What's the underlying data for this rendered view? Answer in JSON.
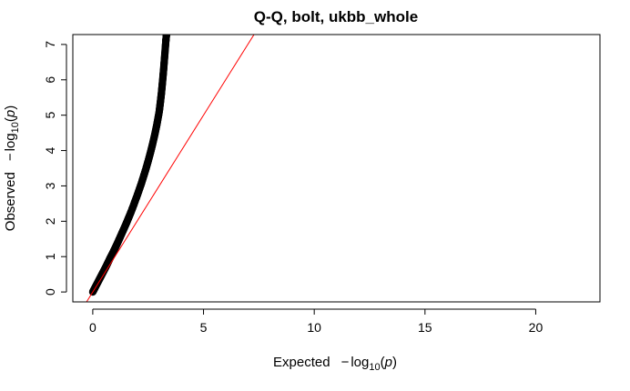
{
  "chart_data": {
    "type": "scatter",
    "title": "Q-Q, bolt, ukbb_whole",
    "xlabel": {
      "prefix": "Expected",
      "minus": "−",
      "log": "log",
      "base": "10",
      "var": "p"
    },
    "ylabel": {
      "prefix": "Observed",
      "minus": "−",
      "log": "log",
      "base": "10",
      "var": "p"
    },
    "xlim": [
      -0.9,
      22.9
    ],
    "ylim": [
      -0.28,
      7.28
    ],
    "xticks": [
      0,
      5,
      10,
      15,
      20
    ],
    "yticks": [
      0,
      1,
      2,
      3,
      4,
      5,
      6,
      7
    ],
    "reference_line": {
      "slope": 1,
      "intercept": 0,
      "color": "#ff0000"
    },
    "series": [
      {
        "color": "#000000",
        "points": [
          [
            0.0,
            0.0
          ],
          [
            0.1,
            0.12
          ],
          [
            0.2,
            0.24
          ],
          [
            0.3,
            0.36
          ],
          [
            0.4,
            0.48
          ],
          [
            0.5,
            0.6
          ],
          [
            0.6,
            0.72
          ],
          [
            0.7,
            0.85
          ],
          [
            0.8,
            0.98
          ],
          [
            0.9,
            1.1
          ],
          [
            1.0,
            1.23
          ],
          [
            1.1,
            1.36
          ],
          [
            1.2,
            1.5
          ],
          [
            1.3,
            1.64
          ],
          [
            1.4,
            1.78
          ],
          [
            1.5,
            1.92
          ],
          [
            1.6,
            2.07
          ],
          [
            1.7,
            2.22
          ],
          [
            1.8,
            2.38
          ],
          [
            1.9,
            2.55
          ],
          [
            2.0,
            2.72
          ],
          [
            2.1,
            2.9
          ],
          [
            2.2,
            3.08
          ],
          [
            2.3,
            3.28
          ],
          [
            2.4,
            3.48
          ],
          [
            2.5,
            3.7
          ],
          [
            2.6,
            3.93
          ],
          [
            2.7,
            4.18
          ],
          [
            2.8,
            4.45
          ],
          [
            2.9,
            4.75
          ],
          [
            3.0,
            5.1
          ],
          [
            3.05,
            5.35
          ],
          [
            3.1,
            5.62
          ],
          [
            3.15,
            5.95
          ],
          [
            3.2,
            6.3
          ],
          [
            3.25,
            6.7
          ],
          [
            3.3,
            7.1
          ],
          [
            3.33,
            7.3
          ]
        ]
      }
    ]
  }
}
